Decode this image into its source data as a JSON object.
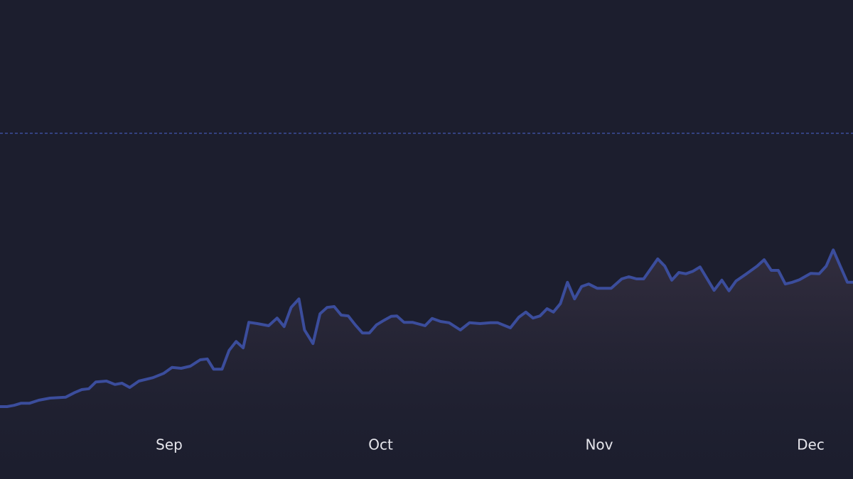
{
  "chart_data": {
    "type": "line",
    "x": [
      0,
      1.0,
      2.0,
      3.0,
      4.2,
      5.5,
      7.1,
      9.3,
      10.6,
      11.6,
      12.6,
      13.6,
      15.1,
      16.3,
      17.3,
      18.4,
      19.7,
      21.7,
      23.2,
      24.4,
      25.7,
      27.0,
      28.4,
      29.4,
      30.3,
      31.5,
      32.5,
      33.5,
      34.5,
      35.3,
      36.5,
      38.1,
      39.3,
      40.3,
      41.3,
      42.4,
      43.2,
      44.4,
      45.4,
      46.4,
      47.4,
      48.4,
      49.4,
      50.4,
      51.4,
      52.4,
      53.4,
      54.5,
      55.5,
      56.3,
      57.3,
      58.5,
      60.3,
      61.3,
      62.5,
      63.7,
      65.3,
      66.6,
      68.1,
      69.6,
      70.6,
      72.4,
      73.6,
      74.6,
      75.6,
      76.6,
      77.6,
      78.5,
      79.5,
      80.5,
      81.5,
      82.5,
      83.5,
      84.7,
      86.7,
      88.2,
      89.2,
      90.3,
      91.3,
      93.3,
      94.3,
      95.3,
      96.3,
      97.3,
      98.3,
      99.3,
      101.3,
      102.4,
      103.4,
      104.4,
      105.9,
      107.4,
      108.4,
      109.4,
      110.4,
      111.4,
      112.4,
      113.4,
      115.0,
      116.2,
      117.2,
      118.2,
      119.2,
      120.2,
      121
    ],
    "series": [
      {
        "color": "#3b4d9c",
        "values": [
          4.5,
          4.5,
          4.8,
          5.3,
          5.3,
          6.0,
          6.5,
          6.7,
          7.8,
          8.5,
          8.7,
          10.3,
          10.5,
          9.7,
          10.0,
          9.0,
          10.5,
          11.3,
          12.3,
          13.7,
          13.5,
          14.0,
          15.5,
          15.7,
          13.3,
          13.3,
          17.7,
          19.8,
          18.3,
          24.3,
          24.0,
          23.5,
          25.3,
          23.3,
          27.8,
          29.8,
          22.5,
          19.3,
          26.3,
          27.8,
          28.0,
          26.0,
          25.8,
          23.7,
          21.8,
          21.8,
          23.7,
          24.8,
          25.7,
          25.8,
          24.3,
          24.3,
          23.5,
          25.2,
          24.5,
          24.2,
          22.5,
          24.2,
          24.0,
          24.2,
          24.2,
          23.0,
          25.5,
          26.7,
          25.3,
          25.8,
          27.5,
          26.7,
          28.7,
          33.7,
          29.8,
          32.7,
          33.3,
          32.3,
          32.3,
          34.5,
          35.0,
          34.5,
          34.5,
          39.2,
          37.5,
          34.2,
          36.0,
          35.7,
          36.3,
          37.3,
          31.8,
          34.2,
          31.7,
          34.0,
          35.7,
          37.5,
          39.0,
          36.5,
          36.5,
          33.3,
          33.7,
          34.3,
          35.8,
          35.7,
          37.5,
          41.3,
          37.5,
          33.7,
          33.7
        ]
      }
    ],
    "xlim": [
      0,
      121
    ],
    "xticks": [
      {
        "value": 24,
        "label": "Sep"
      },
      {
        "value": 54,
        "label": "Oct"
      },
      {
        "value": 85,
        "label": "Nov"
      },
      {
        "value": 115,
        "label": "Dec"
      }
    ],
    "ylim": [
      0,
      100
    ],
    "reference_line": {
      "value": 68.7,
      "color": "#3b4d9c"
    }
  }
}
